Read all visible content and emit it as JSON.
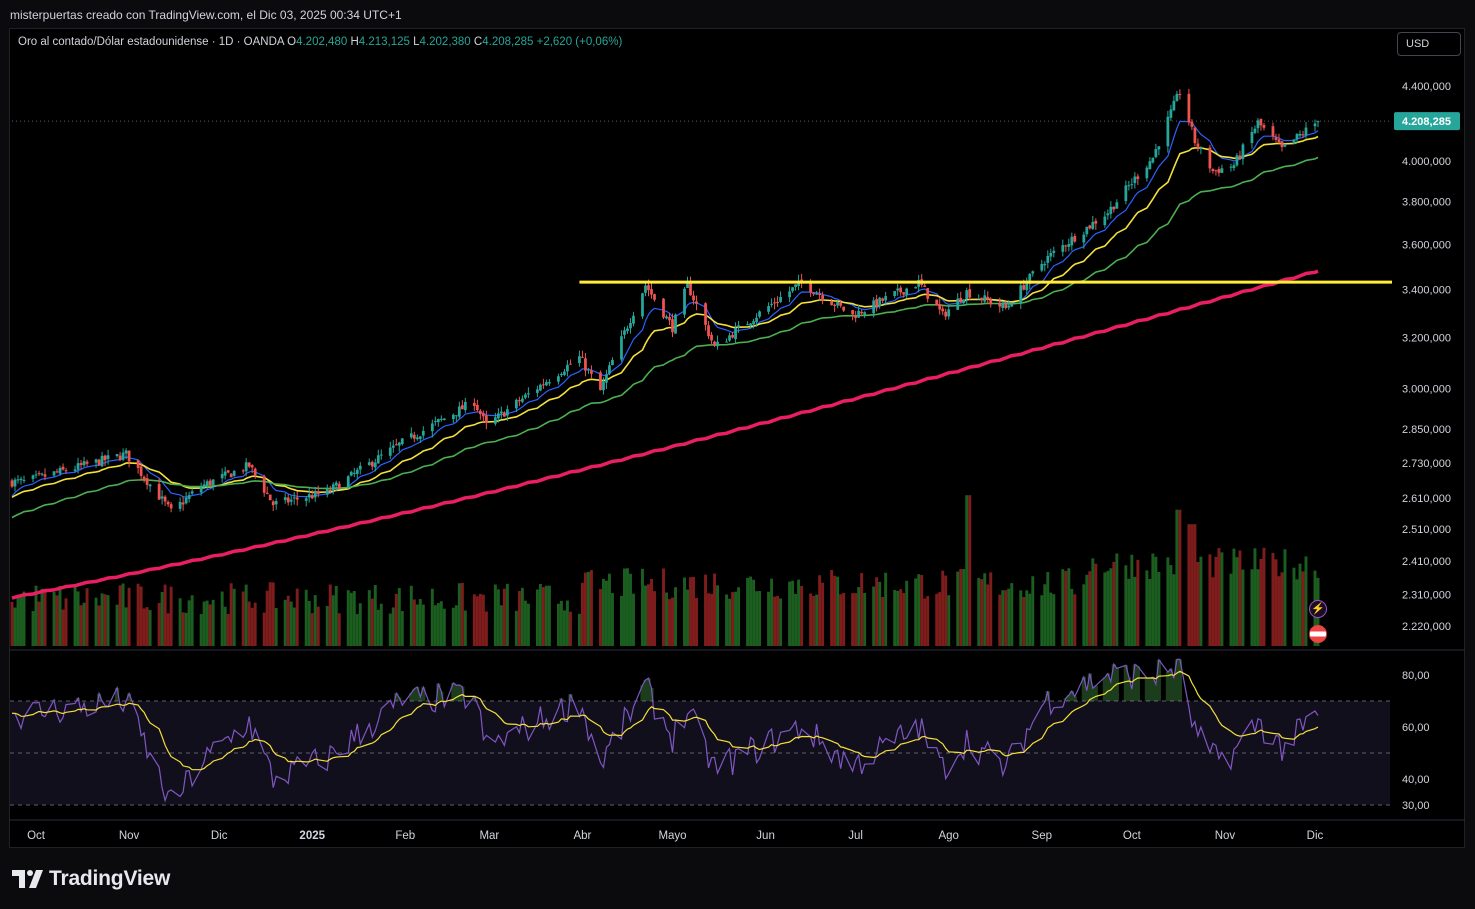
{
  "header": {
    "caption": "misterpuertas creado con TradingView.com, el Dic 03, 2025 00:34 UTC+1"
  },
  "legend": {
    "symbol": "Oro al contado/Dólar estadounidense · 1D · OANDA",
    "open_key": "O",
    "open": "4.202,480",
    "high_key": "H",
    "high": "4.213,125",
    "low_key": "L",
    "low": "4.202,380",
    "close_key": "C",
    "close": "4.208,285",
    "change": "+2,620 (+0,06%)"
  },
  "currency_button": "USD",
  "footer": {
    "brand": "TradingView"
  },
  "colors": {
    "up": "#26a69a",
    "down": "#ef5350",
    "ema_fast": "#2962ff",
    "ema_yellow": "#f4e03b",
    "ema_green": "#4caf50",
    "ema_200": "#e91e63",
    "resistance": "#ffeb3b",
    "rsi": "#7e57c2",
    "rsi_ma": "#f4e03b",
    "vol_up": "#1b5e20",
    "vol_down": "#7f1d1d"
  },
  "chart_data": {
    "type": "candlestick",
    "title": "Oro al contado/Dólar estadounidense · 1D · OANDA",
    "scale": "log",
    "x_ticks": [
      "Oct",
      "Nov",
      "Dic",
      "2025",
      "Feb",
      "Mar",
      "Abr",
      "Mayo",
      "Jun",
      "Jul",
      "Ago",
      "Sep",
      "Oct",
      "Nov",
      "Dic"
    ],
    "price_ticks": [
      "4.400,000",
      "4.000,000",
      "3.800,000",
      "3.600,000",
      "3.400,000",
      "3.200,000",
      "3.000,000",
      "2.850,000",
      "2.730,000",
      "2.610,000",
      "2.510,000",
      "2.410,000",
      "2.310,000",
      "2.220,000"
    ],
    "price_tick_values": [
      4400,
      4000,
      3800,
      3600,
      3400,
      3200,
      3000,
      2850,
      2730,
      2610,
      2510,
      2410,
      2310,
      2220
    ],
    "last_price_label": "4.208,285",
    "last_price": 4208.285,
    "resistance_level": 3432,
    "price_anchors": [
      [
        "2024-09-27",
        2665
      ],
      [
        "2024-10-31",
        2760
      ],
      [
        "2024-11-15",
        2565
      ],
      [
        "2024-11-25",
        2650
      ],
      [
        "2024-12-11",
        2720
      ],
      [
        "2024-12-19",
        2590
      ],
      [
        "2025-01-06",
        2630
      ],
      [
        "2025-01-31",
        2800
      ],
      [
        "2025-02-24",
        2950
      ],
      [
        "2025-02-28",
        2860
      ],
      [
        "2025-03-31",
        3120
      ],
      [
        "2025-04-07",
        2990
      ],
      [
        "2025-04-22",
        3420
      ],
      [
        "2025-05-01",
        3240
      ],
      [
        "2025-05-06",
        3420
      ],
      [
        "2025-05-15",
        3160
      ],
      [
        "2025-06-13",
        3430
      ],
      [
        "2025-06-30",
        3290
      ],
      [
        "2025-07-22",
        3430
      ],
      [
        "2025-07-30",
        3290
      ],
      [
        "2025-08-07",
        3390
      ],
      [
        "2025-08-20",
        3320
      ],
      [
        "2025-09-02",
        3530
      ],
      [
        "2025-09-23",
        3750
      ],
      [
        "2025-10-08",
        4020
      ],
      [
        "2025-10-17",
        4370
      ],
      [
        "2025-10-22",
        4100
      ],
      [
        "2025-10-28",
        3950
      ],
      [
        "2025-11-04",
        3980
      ],
      [
        "2025-11-12",
        4200
      ],
      [
        "2025-11-20",
        4060
      ],
      [
        "2025-12-02",
        4208
      ]
    ],
    "rsi_ticks": [
      "80,00",
      "60,00",
      "40,00",
      "30,00"
    ],
    "rsi_tick_values": [
      80,
      60,
      40,
      30
    ],
    "rsi_bands": [
      70,
      50,
      30
    ],
    "rsi_anchors": [
      [
        "2024-09-27",
        65
      ],
      [
        "2024-10-31",
        70
      ],
      [
        "2024-11-15",
        30
      ],
      [
        "2024-11-25",
        46
      ],
      [
        "2024-12-11",
        62
      ],
      [
        "2024-12-19",
        40
      ],
      [
        "2025-01-06",
        48
      ],
      [
        "2025-01-31",
        70
      ],
      [
        "2025-02-24",
        72
      ],
      [
        "2025-02-28",
        52
      ],
      [
        "2025-03-31",
        70
      ],
      [
        "2025-04-07",
        46
      ],
      [
        "2025-04-22",
        75
      ],
      [
        "2025-05-01",
        56
      ],
      [
        "2025-05-06",
        66
      ],
      [
        "2025-05-15",
        44
      ],
      [
        "2025-06-13",
        60
      ],
      [
        "2025-06-30",
        45
      ],
      [
        "2025-07-22",
        60
      ],
      [
        "2025-07-30",
        44
      ],
      [
        "2025-08-07",
        55
      ],
      [
        "2025-08-20",
        44
      ],
      [
        "2025-09-02",
        70
      ],
      [
        "2025-09-23",
        80
      ],
      [
        "2025-10-08",
        80
      ],
      [
        "2025-10-17",
        83
      ],
      [
        "2025-10-22",
        58
      ],
      [
        "2025-10-28",
        48
      ],
      [
        "2025-11-04",
        50
      ],
      [
        "2025-11-12",
        62
      ],
      [
        "2025-11-20",
        52
      ],
      [
        "2025-12-02",
        64
      ]
    ],
    "ema_periods": [
      9,
      20,
      50,
      200
    ],
    "ema200_range": [
      2300,
      3480
    ],
    "volume_spikes": [
      [
        "2025-08-08",
        2.6
      ],
      [
        "2025-10-17",
        2.35
      ],
      [
        "2025-10-21",
        2.1
      ]
    ],
    "grid": false,
    "legend_placement": "top-left"
  }
}
